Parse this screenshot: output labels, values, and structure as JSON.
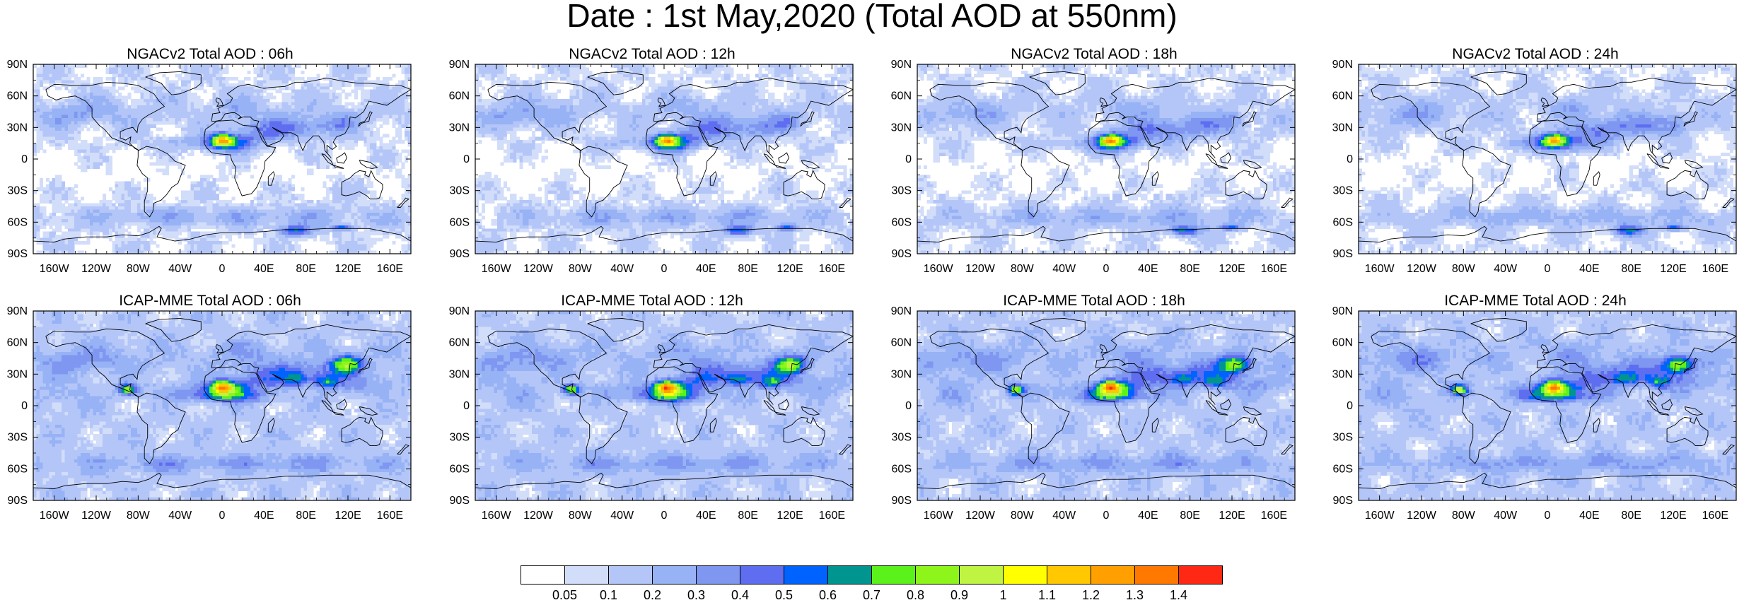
{
  "title": "Date : 1st May,2020 (Total AOD at 550nm)",
  "chart_data": {
    "type": "heatmap",
    "description_note": "",
    "panels": [
      {
        "title": "NGACv2 Total AOD : 06h",
        "model": "NGACv2",
        "hour": "06h"
      },
      {
        "title": "NGACv2 Total AOD : 12h",
        "model": "NGACv2",
        "hour": "12h"
      },
      {
        "title": "NGACv2 Total AOD : 18h",
        "model": "NGACv2",
        "hour": "18h"
      },
      {
        "title": "NGACv2 Total AOD : 24h",
        "model": "NGACv2",
        "hour": "24h"
      },
      {
        "title": "ICAP-MME Total AOD : 06h",
        "model": "ICAP-MME",
        "hour": "06h"
      },
      {
        "title": "ICAP-MME Total AOD : 12h",
        "model": "ICAP-MME",
        "hour": "12h"
      },
      {
        "title": "ICAP-MME Total AOD : 18h",
        "model": "ICAP-MME",
        "hour": "18h"
      },
      {
        "title": "ICAP-MME Total AOD : 24h",
        "model": "ICAP-MME",
        "hour": "24h"
      }
    ],
    "x_ticks": [
      "160W",
      "120W",
      "80W",
      "40W",
      "0",
      "40E",
      "80E",
      "120E",
      "160E"
    ],
    "x_tick_values": [
      -160,
      -120,
      -80,
      -40,
      0,
      40,
      80,
      120,
      160
    ],
    "y_ticks": [
      "90N",
      "60N",
      "30N",
      "0",
      "30S",
      "60S",
      "90S"
    ],
    "y_tick_values": [
      90,
      60,
      30,
      0,
      -30,
      -60,
      -90
    ],
    "xlim": [
      -180,
      180
    ],
    "ylim": [
      -90,
      90
    ],
    "colorbar": {
      "levels": [
        "0.05",
        "0.1",
        "0.2",
        "0.3",
        "0.4",
        "0.5",
        "0.6",
        "0.7",
        "0.8",
        "0.9",
        "1",
        "1.1",
        "1.2",
        "1.3",
        "1.4"
      ],
      "colors": [
        "#ffffff",
        "#d2ddfa",
        "#b4c6f8",
        "#97b2f5",
        "#7f97f0",
        "#5f6ef0",
        "#0063ff",
        "#00968f",
        "#5af21a",
        "#8ef51a",
        "#bff542",
        "#ffff00",
        "#ffc800",
        "#ffa000",
        "#ff7800",
        "#ff2814"
      ]
    }
  }
}
